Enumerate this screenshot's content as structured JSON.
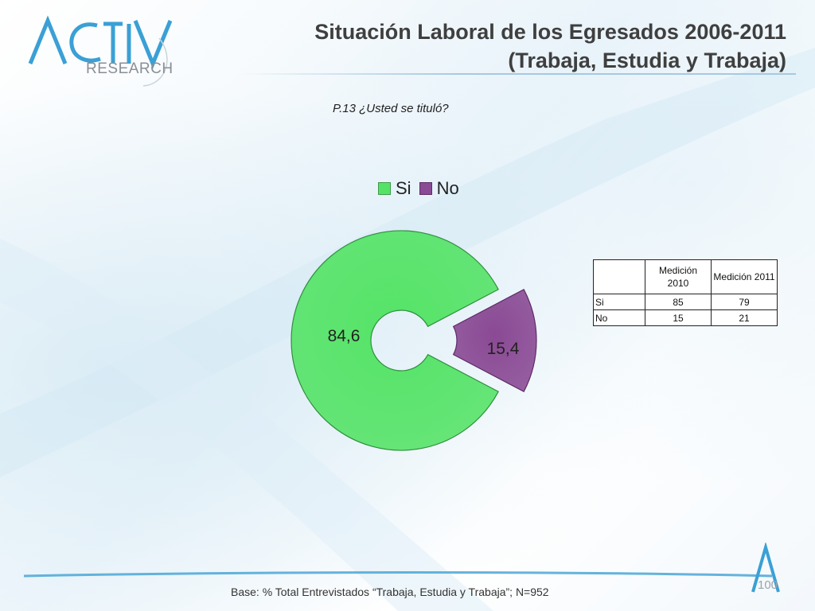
{
  "header": {
    "logo_text": "RESEARCH",
    "title_line1": "Situación Laboral de los Egresados 2006-2011",
    "title_line2": "(Trabaja, Estudia y Trabaja)"
  },
  "question": "P.13 ¿Usted se tituló?",
  "chart_data": {
    "type": "pie",
    "variant": "exploded-donut",
    "categories": [
      "Si",
      "No"
    ],
    "values": [
      84.6,
      15.4
    ],
    "value_labels": [
      "84,6",
      "15,4"
    ],
    "colors": [
      "#55e367",
      "#8a4a94"
    ],
    "legend": {
      "placement": "top",
      "entries": [
        "Si",
        "No"
      ]
    }
  },
  "table": {
    "columns": [
      "",
      "Medición 2010",
      "Medición 2011"
    ],
    "rows": [
      {
        "label": "Si",
        "values": [
          "85",
          "79"
        ]
      },
      {
        "label": "No",
        "values": [
          "15",
          "21"
        ]
      }
    ]
  },
  "footer": {
    "base_text": "Base: % Total Entrevistados “Trabaja, Estudia y Trabaja”; N=952",
    "page_number": "100"
  },
  "colors": {
    "accent": "#4aa6d6",
    "title": "#3f3f3f"
  }
}
